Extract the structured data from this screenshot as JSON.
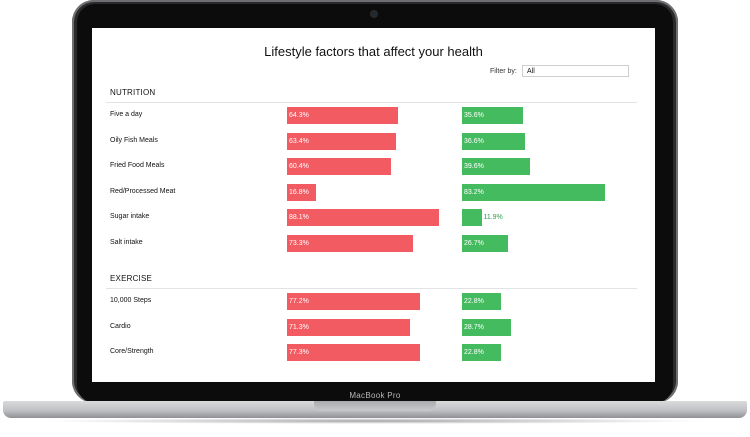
{
  "title": "Lifestyle factors that affect your health",
  "filter": {
    "label": "Filter by:",
    "value": "All"
  },
  "device_label": "MacBook Pro",
  "colors": {
    "negative": "#f25b61",
    "positive": "#45bb5f"
  },
  "sections": [
    {
      "title": "NUTRITION",
      "rows": [
        {
          "label": "Five a day",
          "red": "64.3%",
          "green": "35.6%",
          "red_pct": 64.3,
          "green_pct": 35.6
        },
        {
          "label": "Oily Fish Meals",
          "red": "63.4%",
          "green": "36.6%",
          "red_pct": 63.4,
          "green_pct": 36.6
        },
        {
          "label": "Fried Food Meals",
          "red": "60.4%",
          "green": "39.6%",
          "red_pct": 60.4,
          "green_pct": 39.6
        },
        {
          "label": "Red/Processed Meat",
          "red": "16.8%",
          "green": "83.2%",
          "red_pct": 16.8,
          "green_pct": 83.2
        },
        {
          "label": "Sugar intake",
          "red": "88.1%",
          "green": "11.9%",
          "red_pct": 88.1,
          "green_pct": 11.9
        },
        {
          "label": "Salt intake",
          "red": "73.3%",
          "green": "26.7%",
          "red_pct": 73.3,
          "green_pct": 26.7
        }
      ]
    },
    {
      "title": "EXERCISE",
      "rows": [
        {
          "label": "10,000 Steps",
          "red": "77.2%",
          "green": "22.8%",
          "red_pct": 77.2,
          "green_pct": 22.8
        },
        {
          "label": "Cardio",
          "red": "71.3%",
          "green": "28.7%",
          "red_pct": 71.3,
          "green_pct": 28.7
        },
        {
          "label": "Core/Strength",
          "red": "77.3%",
          "green": "22.8%",
          "red_pct": 77.3,
          "green_pct": 22.8
        }
      ]
    }
  ]
}
